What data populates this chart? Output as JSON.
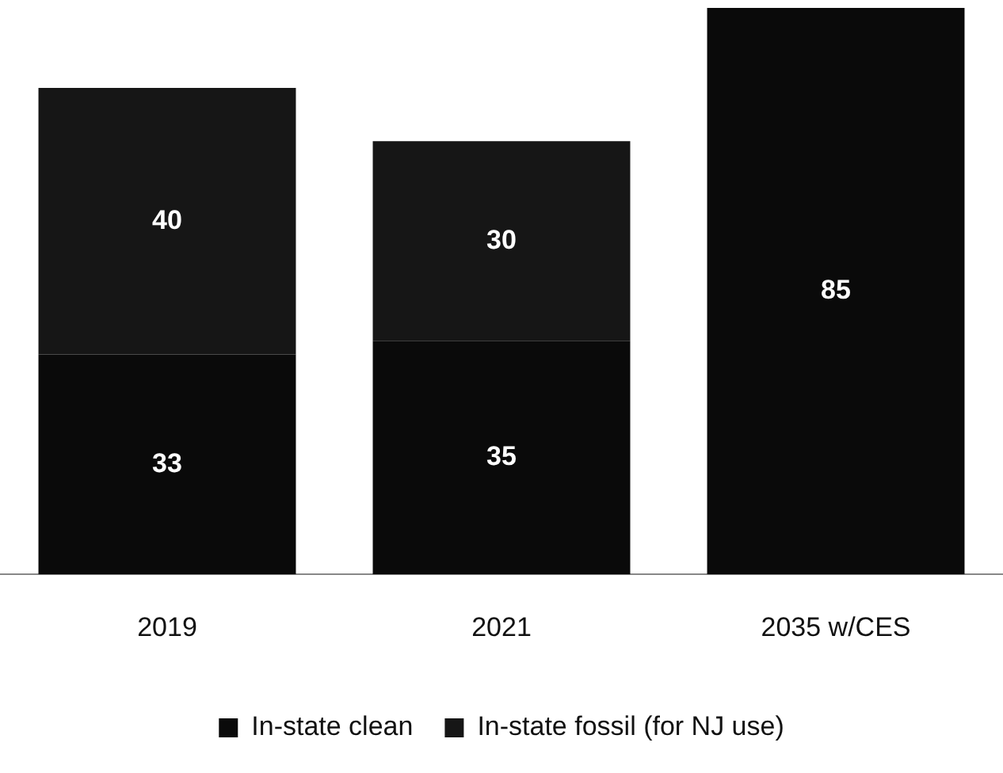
{
  "chart_data": {
    "type": "bar",
    "stacked": true,
    "categories": [
      "2019",
      "2021",
      "2035 w/CES"
    ],
    "series": [
      {
        "name": "In-state clean",
        "color": "#0a0a0a",
        "values": [
          33,
          35,
          85
        ]
      },
      {
        "name": "In-state fossil (for NJ use)",
        "color": "#161616",
        "values": [
          40,
          30,
          null
        ]
      }
    ],
    "data_labels": true,
    "legend": "bottom",
    "grid": false,
    "tick_labels": "x"
  }
}
